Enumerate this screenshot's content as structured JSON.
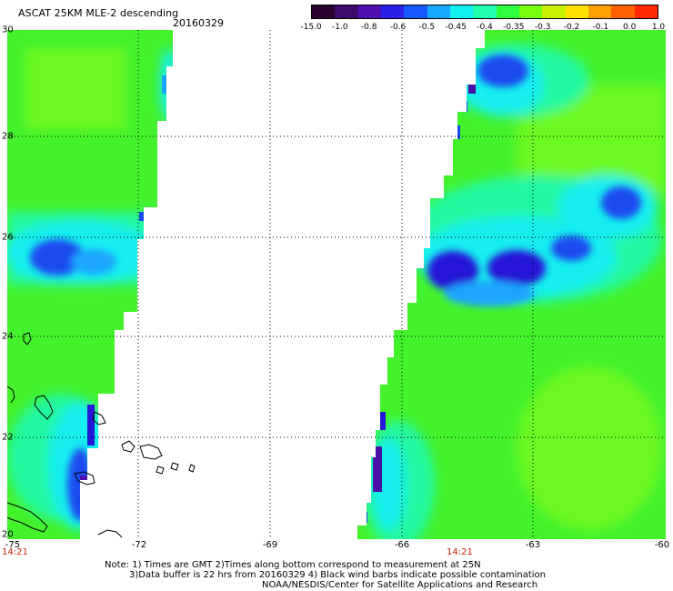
{
  "header": {
    "title": "ASCAT 25KM MLE-2 descending",
    "date": "20160329"
  },
  "colorbar": {
    "colors": [
      "#2a0030",
      "#3e0a6e",
      "#5010b0",
      "#2a20e8",
      "#1858ff",
      "#18a8ff",
      "#10f0f0",
      "#20ffb0",
      "#30ff40",
      "#78ff10",
      "#c8f000",
      "#ffe000",
      "#ffa000",
      "#ff6000",
      "#ff2800"
    ],
    "labels": [
      "-15.0",
      "-1.0",
      "-0.8",
      "-0.6",
      "-0.5",
      "-0.45",
      "-0.4",
      "-0.35",
      "-0.3",
      "-0.2",
      "-0.1",
      "0.0",
      "1.0"
    ]
  },
  "map": {
    "y_labels": [
      "30",
      "28",
      "26",
      "24",
      "22",
      "20"
    ],
    "x_labels": [
      "-75",
      "-72",
      "-69",
      "-66",
      "-63",
      "-60"
    ],
    "time_labels": [
      "14:21",
      "14:21"
    ],
    "colors": {
      "green": "#44f22c",
      "lime": "#6cf820",
      "aqua_green": "#20f8a0",
      "cyan": "#12eef0",
      "light_blue": "#1aa6ff",
      "blue": "#1a4cf0",
      "deep_blue": "#2618d8",
      "purple": "#4a10a8",
      "coast": "#000000",
      "grid": "#000000"
    }
  },
  "notes": {
    "line1": "Note: 1) Times are GMT 2)Times along bottom correspond to measurement at 25N",
    "line2": "3)Data buffer is 22 hrs from 20160329 4) Black wind barbs indicate possible contamination",
    "line3": "NOAA/NESDIS/Center for Satellite Applications and Research"
  }
}
